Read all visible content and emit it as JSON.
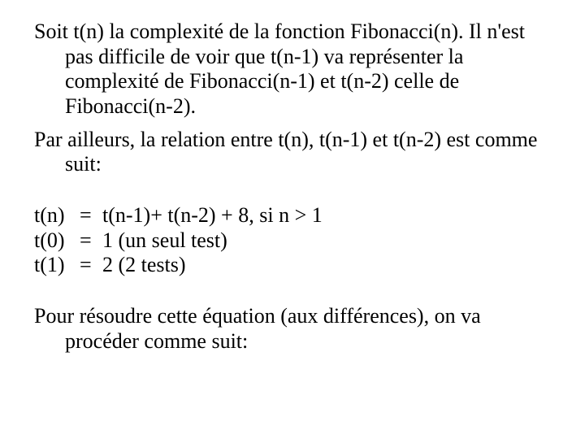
{
  "colors": {
    "background": "#ffffff",
    "text": "#000000"
  },
  "typography": {
    "font_family": "Times New Roman",
    "font_size_pt": 26,
    "line_height": 1.18
  },
  "paragraphs": {
    "p1": "Soit t(n) la complexité de la fonction Fibonacci(n). Il n'est pas difficile de voir que t(n-1) va représenter la complexité de Fibonacci(n-1) et t(n-2) celle de Fibonacci(n-2).",
    "p2": "Par ailleurs, la relation entre t(n), t(n-1) et t(n-2) est comme suit:",
    "p3": "Pour résoudre cette équation (aux différences), on va procéder comme suit:"
  },
  "equations": [
    {
      "lhs": "t(n)",
      "eq": "=",
      "rhs": " t(n-1)+ t(n-2) + 8, si n > 1"
    },
    {
      "lhs": "t(0)",
      "eq": "=",
      "rhs": "1 (un seul test)"
    },
    {
      "lhs": "t(1)",
      "eq": "=",
      "rhs": "2 (2 tests)"
    }
  ]
}
